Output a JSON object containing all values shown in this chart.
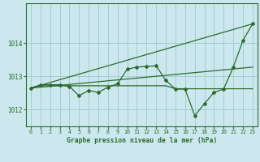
{
  "title": "Graphe pression niveau de la mer (hPa)",
  "bg_color": "#cce8ee",
  "grid_color": "#99cccc",
  "line_color": "#2d6a2d",
  "x_ticks": [
    0,
    1,
    2,
    3,
    4,
    5,
    6,
    7,
    8,
    9,
    10,
    11,
    12,
    13,
    14,
    15,
    16,
    17,
    18,
    19,
    20,
    21,
    22,
    23
  ],
  "ylim": [
    1011.5,
    1015.2
  ],
  "yticks": [
    1012,
    1013,
    1014
  ],
  "series1": [
    1012.65,
    1012.75,
    1012.75,
    1012.75,
    1012.7,
    1012.42,
    1012.58,
    1012.52,
    1012.68,
    1012.78,
    1013.22,
    1013.28,
    1013.3,
    1013.32,
    1012.88,
    1012.62,
    1012.62,
    1011.82,
    1012.18,
    1012.52,
    1012.62,
    1013.28,
    1014.08,
    1014.58
  ],
  "series2_x": [
    0,
    23
  ],
  "series2_y": [
    1012.65,
    1013.28
  ],
  "series3_x": [
    0,
    23
  ],
  "series3_y": [
    1012.65,
    1014.58
  ],
  "series4": [
    1012.65,
    1012.72,
    1012.72,
    1012.72,
    1012.72,
    1012.72,
    1012.72,
    1012.72,
    1012.72,
    1012.72,
    1012.72,
    1012.72,
    1012.72,
    1012.72,
    1012.72,
    1012.63,
    1012.63,
    1012.63,
    1012.63,
    1012.63,
    1012.63,
    1012.63,
    1012.63,
    1012.63
  ]
}
